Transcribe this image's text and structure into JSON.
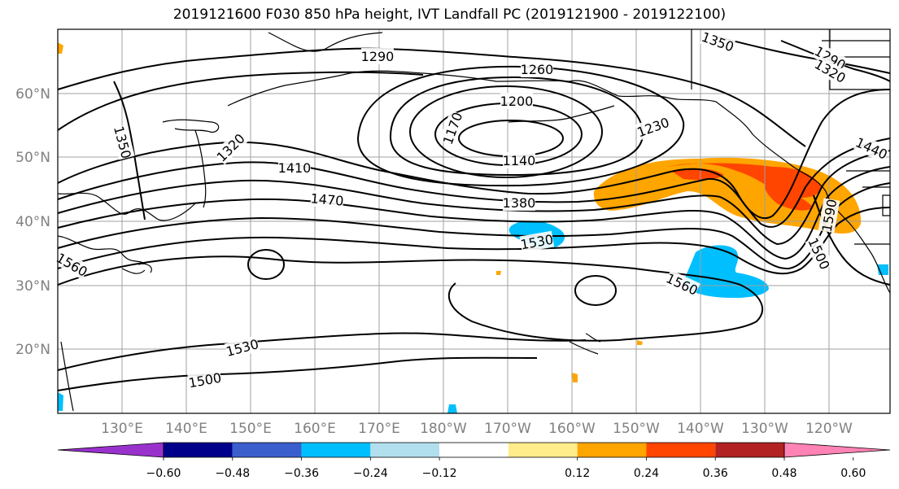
{
  "title": "2019121600 F030 850 hPa height, IVT Landfall PC (2019121900 - 2019122100)",
  "lat_labels": [
    "60°N",
    "50°N",
    "40°N",
    "30°N",
    "20°N"
  ],
  "lon_labels": [
    "130°E",
    "140°E",
    "150°E",
    "160°E",
    "170°E",
    "180°W",
    "170°W",
    "160°W",
    "150°W",
    "140°W",
    "130°W",
    "120°W"
  ],
  "contour_labels": [
    "1290",
    "1260",
    "1350",
    "1290",
    "1320",
    "1350",
    "1320",
    "1200",
    "1170",
    "1230",
    "1140",
    "1410",
    "1440",
    "1470",
    "1380",
    "1590",
    "1530",
    "1560",
    "1500",
    "1560",
    "1530",
    "1500"
  ],
  "colorbar": {
    "colors": [
      "#9932CC",
      "#00008B",
      "#3A5FCD",
      "#00BFFF",
      "#B2DFEE",
      "#FFFFFF",
      "#FFEC8B",
      "#FFA500",
      "#FF4500",
      "#B22222",
      "#FF83B4"
    ],
    "tick_labels": [
      "−0.60",
      "−0.48",
      "−0.36",
      "−0.24",
      "−0.12",
      "0.12",
      "0.24",
      "0.36",
      "0.48",
      "0.60"
    ]
  }
}
